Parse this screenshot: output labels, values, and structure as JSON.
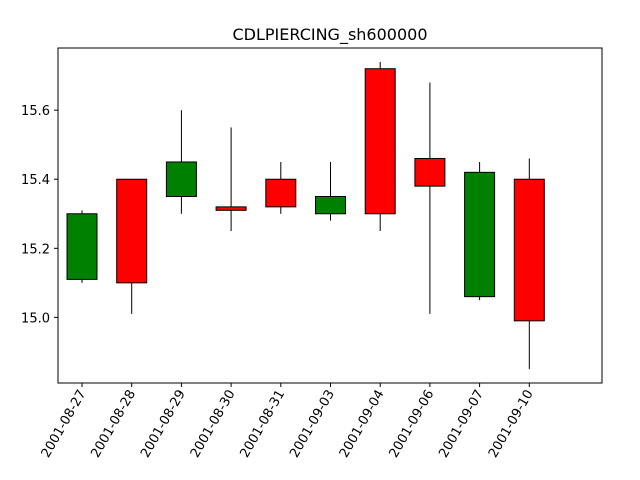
{
  "chart_data": {
    "type": "candlestick",
    "title": "CDLPIERCING_sh600000",
    "xlabel": "",
    "ylabel": "",
    "ylim": [
      14.81,
      15.78
    ],
    "yticks": [
      15.0,
      15.2,
      15.4,
      15.6
    ],
    "ytick_labels": [
      "15.0",
      "15.2",
      "15.4",
      "15.6"
    ],
    "grid": false,
    "colors": {
      "up": "#008000",
      "down": "#ff0000",
      "edge": "#000000"
    },
    "categories": [
      "2001-08-27",
      "2001-08-28",
      "2001-08-29",
      "2001-08-30",
      "2001-08-31",
      "2001-09-03",
      "2001-09-04",
      "2001-09-06",
      "2001-09-07",
      "2001-09-10"
    ],
    "candles": [
      {
        "date": "2001-08-27",
        "open": 15.11,
        "close": 15.3,
        "high": 15.31,
        "low": 15.1,
        "direction": "up"
      },
      {
        "date": "2001-08-28",
        "open": 15.4,
        "close": 15.1,
        "high": 15.4,
        "low": 15.01,
        "direction": "down"
      },
      {
        "date": "2001-08-29",
        "open": 15.35,
        "close": 15.45,
        "high": 15.6,
        "low": 15.3,
        "direction": "up"
      },
      {
        "date": "2001-08-30",
        "open": 15.32,
        "close": 15.31,
        "high": 15.55,
        "low": 15.25,
        "direction": "down"
      },
      {
        "date": "2001-08-31",
        "open": 15.4,
        "close": 15.32,
        "high": 15.45,
        "low": 15.3,
        "direction": "down"
      },
      {
        "date": "2001-09-03",
        "open": 15.3,
        "close": 15.35,
        "high": 15.45,
        "low": 15.28,
        "direction": "up"
      },
      {
        "date": "2001-09-04",
        "open": 15.72,
        "close": 15.3,
        "high": 15.74,
        "low": 15.25,
        "direction": "down"
      },
      {
        "date": "2001-09-06",
        "open": 15.46,
        "close": 15.38,
        "high": 15.68,
        "low": 15.01,
        "direction": "down"
      },
      {
        "date": "2001-09-07",
        "open": 15.06,
        "close": 15.42,
        "high": 15.45,
        "low": 15.05,
        "direction": "up"
      },
      {
        "date": "2001-09-10",
        "open": 15.4,
        "close": 14.99,
        "high": 15.46,
        "low": 14.85,
        "direction": "down"
      }
    ]
  }
}
